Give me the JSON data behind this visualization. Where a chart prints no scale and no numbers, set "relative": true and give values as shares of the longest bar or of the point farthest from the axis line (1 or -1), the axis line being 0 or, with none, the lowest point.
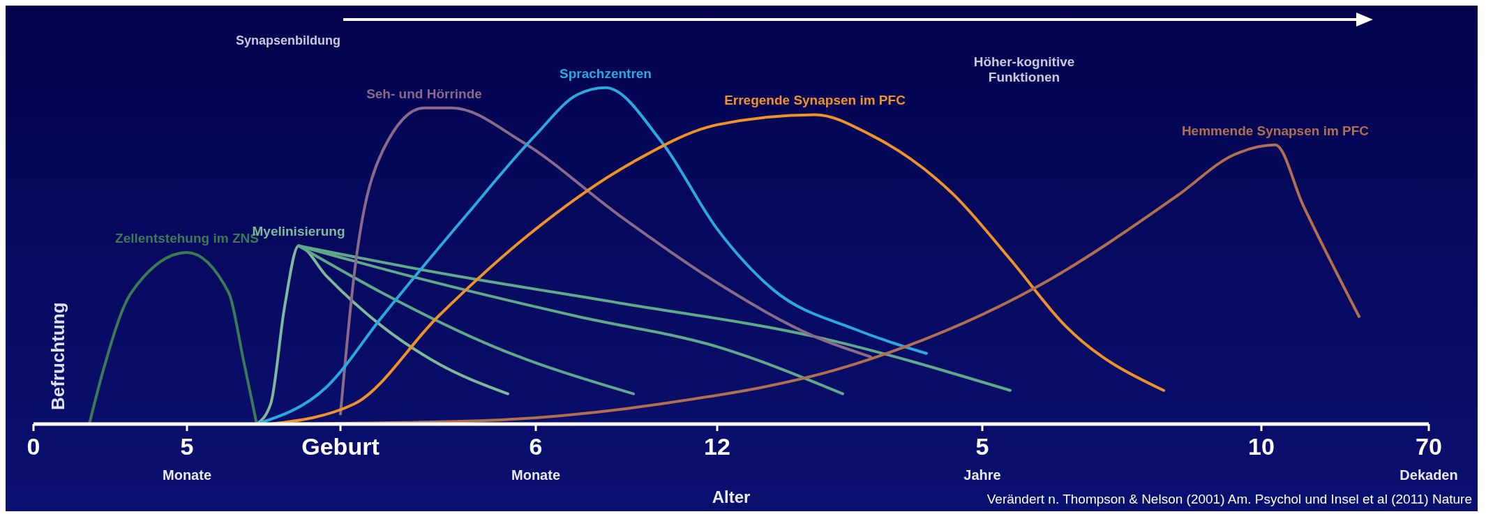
{
  "chart_data": {
    "type": "line",
    "relative": true,
    "xlabel": "Alter",
    "categories": [
      "0",
      null,
      null,
      null,
      null,
      null,
      null,
      null,
      null,
      null,
      null,
      "5 Monate",
      null,
      null,
      null,
      null,
      null,
      null,
      null,
      null,
      null,
      null,
      "Geburt",
      null,
      null,
      null,
      null,
      null,
      null,
      null,
      null,
      null,
      null,
      null,
      null,
      null,
      "6 Monate",
      null,
      null,
      null,
      null,
      null,
      null,
      null,
      null,
      null,
      null,
      null,
      null,
      "12",
      null,
      null,
      null,
      null,
      null,
      null,
      null,
      null,
      null,
      null,
      null,
      null,
      null,
      null,
      null,
      null,
      null,
      null,
      "5 Jahre",
      null,
      null,
      null,
      null,
      null,
      null,
      null,
      null,
      null,
      null,
      null,
      null,
      null,
      null,
      null,
      null,
      null,
      null,
      null,
      "10",
      null,
      null,
      null,
      null,
      null,
      null,
      null,
      null,
      null,
      null,
      null,
      "70 Dekaden"
    ],
    "marker": "none",
    "line_style": "solid",
    "annotations": [
      "Befruchtung",
      "Synapsenbildung",
      "Höher-kognitive Funktionen",
      "Verändert n. Thompson & Nelson (2001) Am. Psychol und Insel et al (2011) Nature"
    ],
    "series": [
      {
        "name": "Zellentstehung im ZNS",
        "color": "#3a7a55",
        "values": [
          null,
          null,
          null,
          null,
          0,
          0.16,
          null,
          0.39,
          null,
          null,
          null,
          0.51,
          null,
          null,
          0.39,
          0.2,
          0,
          null,
          null,
          null,
          null,
          null,
          null,
          null,
          null,
          null,
          null,
          null,
          null,
          null,
          null,
          null,
          null,
          null,
          null,
          null,
          null,
          null,
          null,
          null,
          null,
          null,
          null,
          null,
          null,
          null,
          null,
          null,
          null,
          null,
          null,
          null,
          null,
          null,
          null,
          null,
          null,
          null,
          null,
          null,
          null,
          null,
          null,
          null,
          null,
          null,
          null,
          null,
          null,
          null,
          null,
          null,
          null,
          null,
          null,
          null,
          null,
          null,
          null,
          null,
          null,
          null,
          null,
          null,
          null,
          null,
          null,
          null,
          null,
          null,
          null,
          null,
          null,
          null,
          null,
          null,
          null,
          null,
          null,
          null,
          null
        ]
      },
      {
        "name": "Myelinisierung",
        "color": "#7fb89a",
        "values": [
          null,
          null,
          null,
          null,
          null,
          null,
          null,
          null,
          null,
          null,
          null,
          null,
          null,
          null,
          null,
          null,
          0,
          0.06,
          0.35,
          0.53,
          null,
          0.44,
          null,
          null,
          null,
          0.29,
          null,
          null,
          null,
          0.18,
          null,
          null,
          null,
          null,
          0.09,
          null,
          null,
          null,
          null,
          null,
          null,
          null,
          null,
          null,
          null,
          null,
          null,
          null,
          null,
          null,
          null,
          null,
          null,
          null,
          null,
          null,
          null,
          null,
          null,
          null,
          null,
          null,
          null,
          null,
          null,
          null,
          null,
          null,
          null,
          null,
          null,
          null,
          null,
          null,
          null,
          null,
          null,
          null,
          null,
          null,
          null,
          null,
          null,
          null,
          null,
          null,
          null,
          null,
          null,
          null,
          null,
          null,
          null,
          null,
          null,
          null,
          null,
          null,
          null,
          null,
          null
        ]
      },
      {
        "color": "#5fa88a",
        "values": [
          null,
          null,
          null,
          null,
          null,
          null,
          null,
          null,
          null,
          null,
          null,
          null,
          null,
          null,
          null,
          null,
          null,
          null,
          null,
          0.53,
          null,
          null,
          null,
          null,
          null,
          0.39,
          null,
          null,
          null,
          null,
          null,
          null,
          null,
          0.23,
          null,
          null,
          null,
          null,
          null,
          null,
          null,
          null,
          null,
          0.09,
          null,
          null,
          null,
          null,
          null,
          null,
          null,
          null,
          null,
          null,
          null,
          null,
          null,
          null,
          null,
          null,
          null,
          null,
          null,
          null,
          null,
          null,
          null,
          null,
          null,
          null,
          null,
          null,
          null,
          null,
          null,
          null,
          null,
          null,
          null,
          null,
          null,
          null,
          null,
          null,
          null,
          null,
          null,
          null,
          null,
          null,
          null,
          null,
          null,
          null,
          null,
          null,
          null,
          null,
          null,
          null,
          null
        ]
      },
      {
        "color": "#5fa88a",
        "values": [
          null,
          null,
          null,
          null,
          null,
          null,
          null,
          null,
          null,
          null,
          null,
          null,
          null,
          null,
          null,
          null,
          null,
          null,
          null,
          0.53,
          null,
          null,
          null,
          null,
          null,
          null,
          null,
          0.44,
          null,
          null,
          null,
          null,
          null,
          null,
          null,
          null,
          null,
          null,
          null,
          0.32,
          null,
          null,
          null,
          null,
          null,
          null,
          null,
          null,
          null,
          0.23,
          null,
          null,
          null,
          null,
          null,
          null,
          null,
          null,
          0.09,
          null,
          null,
          null,
          null,
          null,
          null,
          null,
          null,
          null,
          null,
          null,
          null,
          null,
          null,
          null,
          null,
          null,
          null,
          null,
          null,
          null,
          null,
          null,
          null,
          null,
          null,
          null,
          null,
          null,
          null,
          null,
          null,
          null,
          null,
          null,
          null,
          null,
          null,
          null,
          null,
          null,
          null
        ]
      },
      {
        "color": "#5fa88a",
        "values": [
          null,
          null,
          null,
          null,
          null,
          null,
          null,
          null,
          null,
          null,
          null,
          null,
          null,
          null,
          null,
          null,
          null,
          null,
          null,
          0.53,
          null,
          null,
          null,
          null,
          null,
          null,
          null,
          null,
          null,
          0.45,
          null,
          null,
          null,
          null,
          null,
          null,
          null,
          null,
          null,
          null,
          null,
          null,
          0.36,
          null,
          null,
          null,
          null,
          null,
          null,
          null,
          null,
          null,
          null,
          null,
          null,
          null,
          0.26,
          null,
          null,
          null,
          null,
          null,
          null,
          null,
          null,
          null,
          null,
          null,
          null,
          null,
          0.1,
          null,
          null,
          null,
          null,
          null,
          null,
          null,
          null,
          null,
          null,
          null,
          null,
          null,
          null,
          null,
          null,
          null,
          null,
          null,
          null,
          null,
          null,
          null,
          null,
          null,
          null,
          null,
          null,
          null,
          null
        ]
      },
      {
        "name": "Seh- und Hörrinde",
        "color": "#8a6a8a",
        "values": [
          null,
          null,
          null,
          null,
          null,
          null,
          null,
          null,
          null,
          null,
          null,
          null,
          null,
          null,
          null,
          null,
          null,
          null,
          null,
          null,
          null,
          null,
          0.03,
          0.45,
          null,
          0.81,
          null,
          null,
          0.94,
          null,
          0.94,
          null,
          null,
          null,
          null,
          0.84,
          null,
          null,
          null,
          null,
          null,
          null,
          0.62,
          null,
          null,
          null,
          null,
          null,
          null,
          0.42,
          null,
          null,
          null,
          null,
          null,
          null,
          0.26,
          null,
          null,
          null,
          0.2,
          null,
          null,
          null,
          null,
          null,
          null,
          null,
          null,
          null,
          null,
          null,
          null,
          null,
          null,
          null,
          null,
          null,
          null,
          null,
          null,
          null,
          null,
          null,
          null,
          null,
          null,
          null,
          null,
          null,
          null,
          null,
          null,
          null,
          null,
          null,
          null,
          null,
          null,
          null,
          null
        ]
      },
      {
        "name": "Sprachzentren",
        "color": "#2aa8e0",
        "values": [
          null,
          null,
          null,
          null,
          null,
          null,
          null,
          null,
          null,
          null,
          null,
          null,
          null,
          null,
          null,
          null,
          0,
          null,
          null,
          null,
          null,
          0.11,
          null,
          null,
          null,
          0.32,
          null,
          null,
          null,
          null,
          null,
          0.62,
          null,
          null,
          null,
          null,
          0.86,
          null,
          null,
          0.98,
          null,
          1,
          null,
          null,
          null,
          0.84,
          null,
          null,
          null,
          0.58,
          null,
          null,
          null,
          0.4,
          null,
          null,
          null,
          null,
          null,
          0.28,
          null,
          null,
          null,
          null,
          0.21,
          null,
          null,
          null,
          null,
          null,
          null,
          null,
          null,
          null,
          null,
          null,
          null,
          null,
          null,
          null,
          null,
          null,
          null,
          null,
          null,
          null,
          null,
          null,
          null,
          null,
          null,
          null,
          null,
          null,
          null,
          null,
          null,
          null,
          null,
          null,
          null
        ]
      },
      {
        "name": "Erregende Synapsen im PFC",
        "color": "#f0922a",
        "values": [
          null,
          null,
          null,
          null,
          null,
          null,
          null,
          null,
          null,
          null,
          null,
          null,
          null,
          null,
          null,
          null,
          null,
          0,
          null,
          null,
          null,
          null,
          null,
          0.06,
          null,
          null,
          null,
          null,
          null,
          0.32,
          null,
          null,
          null,
          null,
          null,
          null,
          0.58,
          null,
          null,
          null,
          null,
          null,
          null,
          0.78,
          null,
          null,
          null,
          null,
          null,
          0.89,
          null,
          null,
          null,
          null,
          null,
          null,
          0.92,
          null,
          null,
          null,
          0.86,
          null,
          null,
          null,
          null,
          null,
          0.68,
          null,
          null,
          null,
          0.49,
          null,
          null,
          null,
          0.29,
          null,
          null,
          null,
          null,
          null,
          null,
          0.1,
          null,
          null,
          null,
          null,
          null,
          null,
          null,
          null,
          null,
          null,
          null,
          null,
          null,
          null,
          null,
          null,
          null,
          null,
          null
        ]
      },
      {
        "name": "Hemmende Synapsen im PFC",
        "color": "#b07050",
        "values": [
          null,
          null,
          null,
          null,
          null,
          null,
          null,
          null,
          null,
          null,
          null,
          null,
          null,
          null,
          null,
          null,
          null,
          0,
          null,
          null,
          null,
          null,
          null,
          null,
          null,
          null,
          null,
          null,
          null,
          null,
          null,
          null,
          0.01,
          null,
          null,
          null,
          null,
          null,
          null,
          null,
          null,
          null,
          null,
          null,
          null,
          0.06,
          null,
          null,
          null,
          null,
          null,
          null,
          null,
          null,
          null,
          null,
          null,
          null,
          null,
          0.18,
          null,
          null,
          null,
          null,
          null,
          null,
          null,
          null,
          null,
          null,
          null,
          null,
          0.41,
          null,
          null,
          null,
          null,
          null,
          null,
          null,
          null,
          null,
          0.68,
          null,
          null,
          null,
          0.8,
          null,
          null,
          0.83,
          null,
          0.65,
          null,
          null,
          null,
          0.32,
          null,
          null,
          null,
          null,
          null
        ]
      }
    ]
  }
}
